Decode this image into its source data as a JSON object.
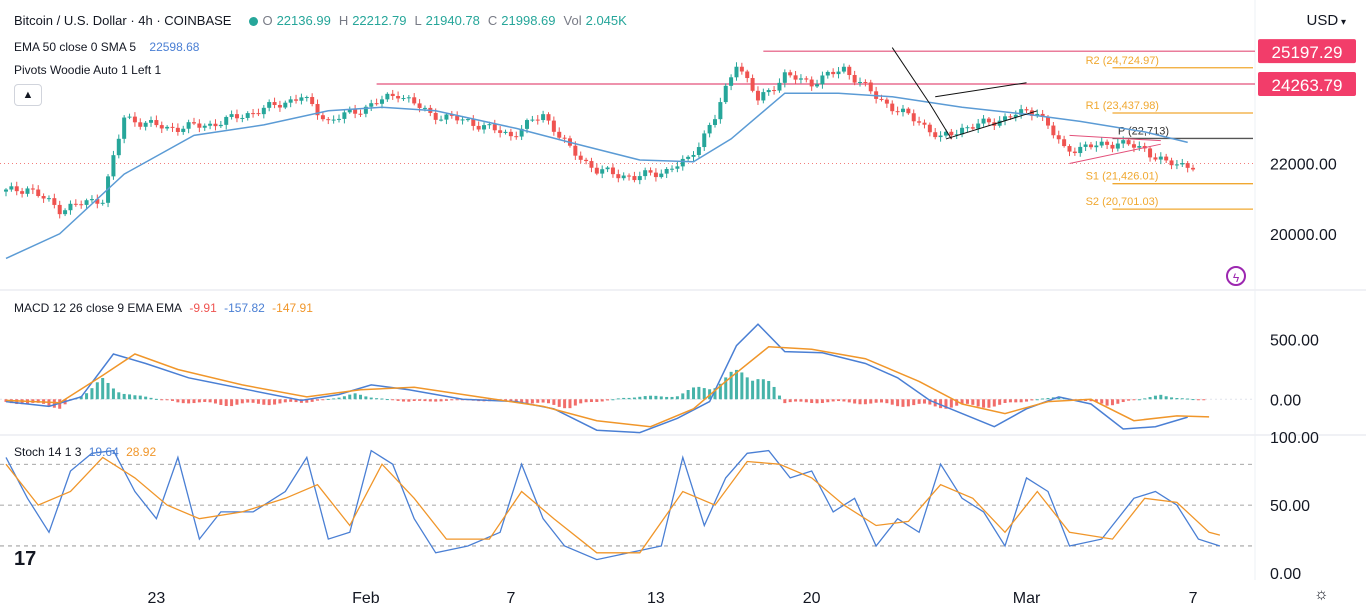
{
  "header": {
    "symbol": "Bitcoin / U.S. Dollar · 4h · COINBASE",
    "o_label": "O",
    "o": "22136.99",
    "h_label": "H",
    "h": "22212.79",
    "l_label": "L",
    "l": "21940.78",
    "c_label": "C",
    "c": "21998.69",
    "vol_label": "Vol",
    "vol": "2.045K",
    "ema_label": "EMA 50 close 0 SMA 5",
    "ema_value": "22598.68",
    "pivots_label": "Pivots Woodie Auto 1 Left 1",
    "currency": "USD"
  },
  "colors": {
    "up": "#26a69a",
    "down": "#ef5350",
    "ema": "#5b9bd5",
    "pivot": "#f0a830",
    "resistance": "#e3507a",
    "macd": "#4a7fd4",
    "signal": "#f0962a",
    "stoch_k": "#4a7fd4",
    "stoch_d": "#f0962a"
  },
  "chart_data": [
    {
      "type": "candlestick",
      "title": "Bitcoin / U.S. Dollar · 4h · COINBASE",
      "ylim": [
        18400,
        25800
      ],
      "price_ticks": [
        "22000.00",
        "20000.00"
      ],
      "price_tick_values": [
        22000,
        20000
      ],
      "x_ticks": [
        "23",
        "Feb",
        "7",
        "13",
        "20",
        "Mar",
        "7"
      ],
      "x_tick_bars": [
        28,
        67,
        94,
        121,
        150,
        190,
        221
      ],
      "bars_total": 230,
      "path": [
        [
          0,
          21200
        ],
        [
          4,
          21300
        ],
        [
          10,
          20700
        ],
        [
          18,
          21000
        ],
        [
          22,
          23300
        ],
        [
          30,
          23000
        ],
        [
          38,
          23100
        ],
        [
          47,
          23500
        ],
        [
          55,
          23900
        ],
        [
          60,
          23200
        ],
        [
          67,
          23600
        ],
        [
          73,
          24000
        ],
        [
          79,
          23400
        ],
        [
          86,
          23200
        ],
        [
          94,
          22800
        ],
        [
          100,
          23400
        ],
        [
          105,
          22400
        ],
        [
          110,
          21800
        ],
        [
          117,
          21600
        ],
        [
          123,
          21800
        ],
        [
          127,
          22100
        ],
        [
          132,
          23300
        ],
        [
          136,
          24900
        ],
        [
          140,
          23800
        ],
        [
          145,
          24500
        ],
        [
          150,
          24300
        ],
        [
          156,
          24700
        ],
        [
          162,
          23900
        ],
        [
          166,
          23500
        ],
        [
          170,
          23200
        ],
        [
          174,
          22700
        ],
        [
          178,
          23000
        ],
        [
          184,
          23200
        ],
        [
          188,
          23400
        ],
        [
          192,
          23500
        ],
        [
          197,
          22400
        ],
        [
          203,
          22500
        ],
        [
          207,
          22600
        ],
        [
          212,
          22400
        ],
        [
          216,
          22000
        ],
        [
          220,
          21950
        ]
      ],
      "ema": [
        [
          0,
          19300
        ],
        [
          10,
          20000
        ],
        [
          22,
          21700
        ],
        [
          35,
          22800
        ],
        [
          48,
          23100
        ],
        [
          60,
          23500
        ],
        [
          70,
          23600
        ],
        [
          80,
          23500
        ],
        [
          95,
          23000
        ],
        [
          105,
          22600
        ],
        [
          118,
          22100
        ],
        [
          128,
          22050
        ],
        [
          135,
          22700
        ],
        [
          145,
          24000
        ],
        [
          155,
          24000
        ],
        [
          165,
          23900
        ],
        [
          178,
          23600
        ],
        [
          190,
          23400
        ],
        [
          200,
          23200
        ],
        [
          212,
          22900
        ],
        [
          220,
          22600
        ]
      ],
      "resistance_levels": [
        {
          "label": "25197.29",
          "value": 25197.29
        },
        {
          "label": "24263.79",
          "value": 24263.79
        }
      ],
      "pivots": [
        {
          "label": "R2 (24,724.97)",
          "value": 24724.97
        },
        {
          "label": "R1 (23,437.98)",
          "value": 23437.98
        },
        {
          "label": "P (22,713)",
          "value": 22713
        },
        {
          "label": "S1 (21,426.01)",
          "value": 21426.01
        },
        {
          "label": "S2 (20,701.03)",
          "value": 20701.03
        }
      ]
    },
    {
      "type": "macd",
      "label": "MACD 12 26 close 9 EMA EMA",
      "values": [
        "-9.91",
        "-157.82",
        "-147.91"
      ],
      "ylim": [
        -300,
        900
      ],
      "ticks": [
        "500.00",
        "0.00"
      ],
      "tick_values": [
        500,
        0
      ],
      "macd": [
        [
          0,
          -20
        ],
        [
          8,
          -60
        ],
        [
          14,
          20
        ],
        [
          20,
          380
        ],
        [
          26,
          300
        ],
        [
          34,
          180
        ],
        [
          45,
          80
        ],
        [
          55,
          -10
        ],
        [
          62,
          40
        ],
        [
          68,
          120
        ],
        [
          75,
          80
        ],
        [
          85,
          0
        ],
        [
          95,
          -20
        ],
        [
          102,
          -80
        ],
        [
          110,
          -260
        ],
        [
          118,
          -280
        ],
        [
          125,
          -160
        ],
        [
          131,
          -20
        ],
        [
          136,
          450
        ],
        [
          140,
          630
        ],
        [
          145,
          400
        ],
        [
          152,
          390
        ],
        [
          160,
          300
        ],
        [
          166,
          180
        ],
        [
          172,
          -10
        ],
        [
          178,
          -120
        ],
        [
          184,
          -230
        ],
        [
          190,
          -80
        ],
        [
          196,
          20
        ],
        [
          202,
          -40
        ],
        [
          208,
          -250
        ],
        [
          214,
          -230
        ],
        [
          220,
          -150
        ]
      ],
      "signal": [
        [
          0,
          -10
        ],
        [
          10,
          -30
        ],
        [
          18,
          200
        ],
        [
          24,
          380
        ],
        [
          32,
          250
        ],
        [
          44,
          120
        ],
        [
          56,
          20
        ],
        [
          66,
          80
        ],
        [
          76,
          100
        ],
        [
          88,
          20
        ],
        [
          100,
          -60
        ],
        [
          110,
          -180
        ],
        [
          120,
          -230
        ],
        [
          128,
          -80
        ],
        [
          134,
          150
        ],
        [
          142,
          440
        ],
        [
          150,
          420
        ],
        [
          160,
          340
        ],
        [
          170,
          150
        ],
        [
          178,
          -40
        ],
        [
          186,
          -120
        ],
        [
          194,
          -20
        ],
        [
          202,
          0
        ],
        [
          210,
          -180
        ],
        [
          218,
          -140
        ],
        [
          224,
          -148
        ]
      ],
      "hist": [
        [
          0,
          -30
        ],
        [
          10,
          -80
        ],
        [
          18,
          180
        ],
        [
          24,
          40
        ],
        [
          32,
          -30
        ],
        [
          42,
          -60
        ],
        [
          55,
          -40
        ],
        [
          65,
          50
        ],
        [
          75,
          -30
        ],
        [
          85,
          -10
        ],
        [
          95,
          -30
        ],
        [
          105,
          -80
        ],
        [
          115,
          20
        ],
        [
          125,
          40
        ],
        [
          133,
          200
        ],
        [
          140,
          320
        ],
        [
          145,
          -40
        ],
        [
          155,
          -30
        ],
        [
          165,
          -60
        ],
        [
          175,
          -80
        ],
        [
          185,
          -70
        ],
        [
          195,
          30
        ],
        [
          205,
          -60
        ],
        [
          215,
          40
        ],
        [
          222,
          -5
        ]
      ]
    },
    {
      "type": "stochastic",
      "label": "Stoch 14 1 3",
      "values": [
        "19.64",
        "28.92"
      ],
      "ylim": [
        -5,
        100
      ],
      "ticks": [
        "100.00",
        "50.00",
        "0.00"
      ],
      "tick_values": [
        100,
        50,
        0
      ],
      "bands": [
        80,
        50,
        20
      ],
      "k": [
        [
          0,
          85
        ],
        [
          4,
          55
        ],
        [
          8,
          30
        ],
        [
          12,
          75
        ],
        [
          16,
          88
        ],
        [
          20,
          90
        ],
        [
          24,
          60
        ],
        [
          28,
          40
        ],
        [
          32,
          85
        ],
        [
          36,
          25
        ],
        [
          40,
          45
        ],
        [
          46,
          45
        ],
        [
          52,
          60
        ],
        [
          56,
          85
        ],
        [
          60,
          25
        ],
        [
          64,
          30
        ],
        [
          68,
          90
        ],
        [
          72,
          80
        ],
        [
          76,
          40
        ],
        [
          80,
          15
        ],
        [
          86,
          20
        ],
        [
          92,
          30
        ],
        [
          96,
          80
        ],
        [
          100,
          40
        ],
        [
          104,
          20
        ],
        [
          110,
          10
        ],
        [
          116,
          15
        ],
        [
          122,
          20
        ],
        [
          126,
          85
        ],
        [
          130,
          35
        ],
        [
          134,
          70
        ],
        [
          138,
          88
        ],
        [
          142,
          90
        ],
        [
          146,
          70
        ],
        [
          150,
          75
        ],
        [
          154,
          45
        ],
        [
          158,
          55
        ],
        [
          162,
          20
        ],
        [
          166,
          40
        ],
        [
          170,
          30
        ],
        [
          174,
          80
        ],
        [
          178,
          55
        ],
        [
          182,
          45
        ],
        [
          186,
          20
        ],
        [
          190,
          70
        ],
        [
          194,
          60
        ],
        [
          198,
          20
        ],
        [
          204,
          25
        ],
        [
          210,
          55
        ],
        [
          214,
          60
        ],
        [
          218,
          50
        ],
        [
          222,
          25
        ],
        [
          226,
          20
        ]
      ],
      "d": [
        [
          0,
          80
        ],
        [
          6,
          50
        ],
        [
          12,
          60
        ],
        [
          18,
          85
        ],
        [
          24,
          70
        ],
        [
          30,
          50
        ],
        [
          36,
          40
        ],
        [
          44,
          45
        ],
        [
          52,
          55
        ],
        [
          58,
          65
        ],
        [
          64,
          35
        ],
        [
          70,
          80
        ],
        [
          76,
          55
        ],
        [
          82,
          25
        ],
        [
          90,
          25
        ],
        [
          96,
          60
        ],
        [
          102,
          40
        ],
        [
          110,
          15
        ],
        [
          118,
          15
        ],
        [
          126,
          60
        ],
        [
          132,
          50
        ],
        [
          138,
          82
        ],
        [
          144,
          80
        ],
        [
          150,
          70
        ],
        [
          156,
          50
        ],
        [
          162,
          35
        ],
        [
          168,
          38
        ],
        [
          174,
          65
        ],
        [
          180,
          55
        ],
        [
          186,
          30
        ],
        [
          192,
          60
        ],
        [
          198,
          30
        ],
        [
          206,
          25
        ],
        [
          212,
          55
        ],
        [
          218,
          52
        ],
        [
          224,
          30
        ],
        [
          226,
          28
        ]
      ]
    }
  ]
}
